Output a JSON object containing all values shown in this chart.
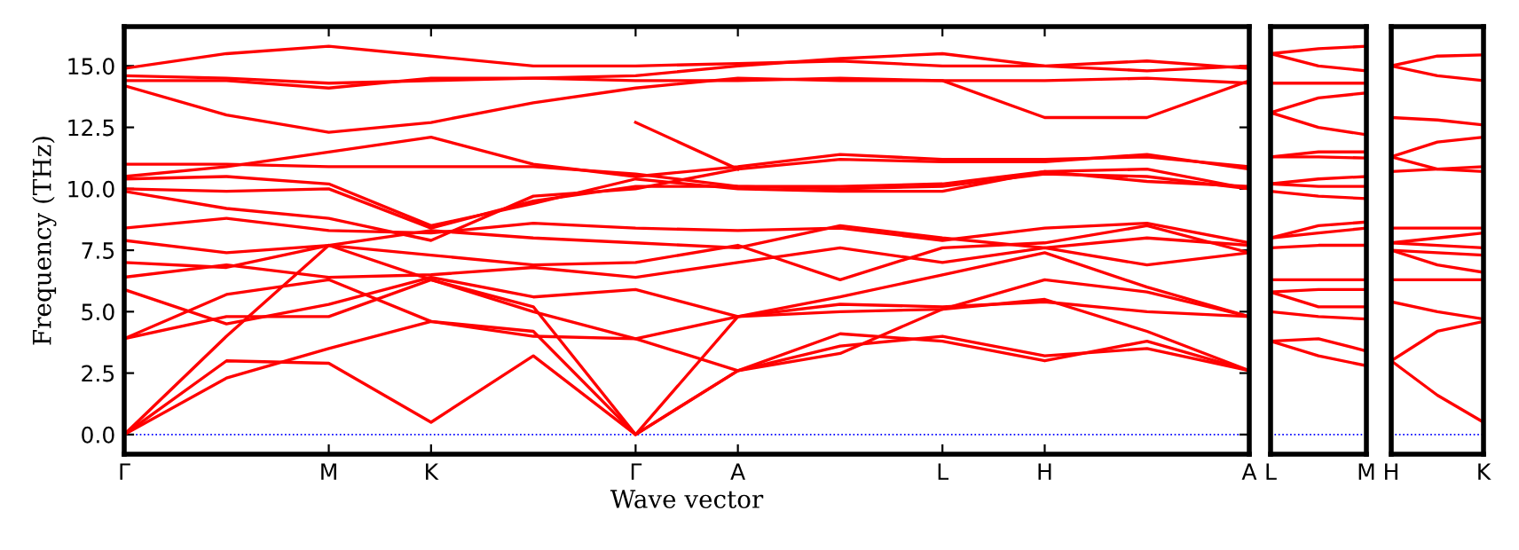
{
  "chart_data": [
    {
      "type": "line",
      "xlabel": "Wave vector",
      "ylabel": "Frequency (THz)",
      "ylim": [
        -0.8,
        16.6
      ],
      "line_style": "solid",
      "marker": "none",
      "categories": [
        "Γ",
        null,
        "M",
        "K",
        null,
        "Γ",
        "A",
        null,
        "L",
        "H",
        null,
        "A"
      ],
      "yticks": [
        {
          "value": 0,
          "label": "0.0"
        },
        {
          "value": 2.5,
          "label": "2.5"
        },
        {
          "value": 5,
          "label": "5.0"
        },
        {
          "value": 7.5,
          "label": "7.5"
        },
        {
          "value": 10,
          "label": "10.0"
        },
        {
          "value": 12.5,
          "label": "12.5"
        },
        {
          "value": 15,
          "label": "15.0"
        }
      ],
      "ref_lines": [
        {
          "axis": "y",
          "value": 0,
          "color": "#0000ff",
          "line_style": "dotted"
        }
      ],
      "series": [
        {
          "color": "#ff0000",
          "values": [
            0,
            3.0,
            2.9,
            0.5,
            3.2,
            0,
            2.6,
            4.1,
            3.8,
            3.0,
            3.8,
            2.6
          ]
        },
        {
          "color": "#ff0000",
          "values": [
            0,
            2.3,
            3.5,
            4.6,
            4.2,
            0,
            4.8,
            5.0,
            5.1,
            6.3,
            5.8,
            4.8
          ]
        },
        {
          "color": "#ff0000",
          "values": [
            0,
            4.0,
            7.7,
            6.3,
            5.2,
            0,
            2.6,
            3.6,
            4.0,
            3.2,
            3.5,
            2.6
          ]
        },
        {
          "color": "#ff0000",
          "values": [
            3.9,
            4.8,
            4.8,
            6.3,
            5.0,
            3.9,
            2.6,
            3.3,
            5.1,
            5.5,
            4.2,
            2.6
          ]
        },
        {
          "color": "#ff0000",
          "values": [
            3.9,
            5.7,
            6.3,
            4.6,
            4.0,
            3.9,
            4.8,
            5.3,
            5.2,
            5.4,
            5.0,
            4.8
          ]
        },
        {
          "color": "#ff0000",
          "values": [
            5.9,
            4.5,
            5.3,
            6.4,
            5.6,
            5.9,
            4.8,
            5.6,
            6.5,
            7.4,
            6.0,
            4.8
          ]
        },
        {
          "color": "#ff0000",
          "values": [
            6.4,
            6.9,
            6.4,
            6.5,
            6.8,
            6.4,
            7.0,
            7.6,
            7.0,
            7.6,
            6.9,
            7.4
          ]
        },
        {
          "color": "#ff0000",
          "values": [
            7.0,
            6.8,
            7.7,
            7.3,
            6.9,
            7.0,
            7.7,
            6.3,
            7.6,
            7.8,
            8.5,
            7.4
          ]
        },
        {
          "color": "#ff0000",
          "values": [
            7.9,
            7.4,
            7.7,
            8.3,
            8.0,
            7.8,
            7.6,
            8.5,
            8.0,
            7.6,
            8.0,
            7.7
          ]
        },
        {
          "color": "#ff0000",
          "values": [
            8.4,
            8.8,
            8.3,
            8.2,
            8.6,
            8.4,
            8.3,
            8.4,
            7.9,
            8.4,
            8.6,
            7.8
          ]
        },
        {
          "color": "#ff0000",
          "values": [
            9.9,
            9.2,
            8.8,
            7.9,
            9.7,
            10.0,
            10.8,
            11.2,
            11.1,
            11.1,
            11.4,
            10.8
          ]
        },
        {
          "color": "#ff0000",
          "values": [
            10.0,
            9.9,
            10.0,
            8.4,
            9.5,
            10.1,
            10.1,
            10.1,
            10.2,
            10.7,
            10.3,
            10.1
          ]
        },
        {
          "color": "#ff0000",
          "values": [
            10.4,
            10.5,
            10.2,
            8.5,
            9.4,
            10.4,
            10.0,
            9.9,
            9.9,
            10.7,
            10.8,
            10.0
          ]
        },
        {
          "color": "#ff0000",
          "values": [
            10.5,
            10.9,
            11.5,
            12.1,
            11.0,
            10.5,
            10.9,
            11.4,
            11.2,
            11.2,
            11.3,
            10.9
          ]
        },
        {
          "color": "#ff0000",
          "values": [
            11.0,
            11.0,
            10.9,
            10.9,
            10.9,
            10.6,
            10.1,
            10.0,
            10.1,
            10.6,
            10.5,
            10.0
          ]
        },
        {
          "color": "#ff0000",
          "values": [
            null,
            null,
            null,
            null,
            null,
            12.7,
            10.8,
            null,
            null,
            null,
            null,
            null
          ]
        },
        {
          "color": "#ff0000",
          "values": [
            14.2,
            13.0,
            12.3,
            12.7,
            13.5,
            14.1,
            14.5,
            14.4,
            14.4,
            12.9,
            12.9,
            14.4
          ]
        },
        {
          "color": "#ff0000",
          "values": [
            14.4,
            14.4,
            14.1,
            14.5,
            14.5,
            14.4,
            14.4,
            14.5,
            14.4,
            14.4,
            14.5,
            14.3
          ]
        },
        {
          "color": "#ff0000",
          "values": [
            14.6,
            14.5,
            14.3,
            14.4,
            14.5,
            14.6,
            15.0,
            15.3,
            15.5,
            15.0,
            14.8,
            15.0
          ]
        },
        {
          "color": "#ff0000",
          "values": [
            14.9,
            15.5,
            15.8,
            15.4,
            15.0,
            15.0,
            15.1,
            15.2,
            15.0,
            15.0,
            15.2,
            14.9
          ]
        }
      ]
    },
    {
      "type": "line",
      "ylim": [
        -0.8,
        16.6
      ],
      "tick_labels": "x",
      "line_style": "solid",
      "marker": "none",
      "categories": [
        "L",
        null,
        "M"
      ],
      "ref_lines": [
        {
          "axis": "y",
          "value": 0,
          "color": "#0000ff",
          "line_style": "dotted"
        }
      ],
      "series": [
        {
          "color": "#ff0000",
          "values": [
            15.5,
            15.7,
            15.8
          ]
        },
        {
          "color": "#ff0000",
          "values": [
            15.5,
            15.0,
            14.8
          ]
        },
        {
          "color": "#ff0000",
          "values": [
            14.3,
            14.3,
            14.3
          ]
        },
        {
          "color": "#ff0000",
          "values": [
            13.1,
            13.7,
            13.9
          ]
        },
        {
          "color": "#ff0000",
          "values": [
            13.1,
            12.5,
            12.2
          ]
        },
        {
          "color": "#ff0000",
          "values": [
            11.3,
            11.5,
            11.5
          ]
        },
        {
          "color": "#ff0000",
          "values": [
            11.3,
            11.3,
            11.25
          ]
        },
        {
          "color": "#ff0000",
          "values": [
            10.2,
            10.4,
            10.5
          ]
        },
        {
          "color": "#ff0000",
          "values": [
            10.2,
            10.1,
            10.1
          ]
        },
        {
          "color": "#ff0000",
          "values": [
            9.9,
            9.7,
            9.6
          ]
        },
        {
          "color": "#ff0000",
          "values": [
            8.0,
            8.5,
            8.65
          ]
        },
        {
          "color": "#ff0000",
          "values": [
            8.0,
            8.2,
            8.4
          ]
        },
        {
          "color": "#ff0000",
          "values": [
            7.6,
            7.7,
            7.7
          ]
        },
        {
          "color": "#ff0000",
          "values": [
            6.3,
            6.3,
            6.3
          ]
        },
        {
          "color": "#ff0000",
          "values": [
            5.8,
            5.9,
            5.9
          ]
        },
        {
          "color": "#ff0000",
          "values": [
            5.8,
            5.2,
            5.2
          ]
        },
        {
          "color": "#ff0000",
          "values": [
            5.0,
            4.8,
            4.7
          ]
        },
        {
          "color": "#ff0000",
          "values": [
            3.8,
            3.9,
            3.4
          ]
        },
        {
          "color": "#ff0000",
          "values": [
            3.8,
            3.2,
            2.8
          ]
        }
      ]
    },
    {
      "type": "line",
      "ylim": [
        -0.8,
        16.6
      ],
      "tick_labels": "x",
      "line_style": "solid",
      "marker": "none",
      "categories": [
        "H",
        null,
        "K"
      ],
      "ref_lines": [
        {
          "axis": "y",
          "value": 0,
          "color": "#0000ff",
          "line_style": "dotted"
        }
      ],
      "series": [
        {
          "color": "#ff0000",
          "values": [
            15.0,
            15.4,
            15.45
          ]
        },
        {
          "color": "#ff0000",
          "values": [
            15.0,
            14.6,
            14.4
          ]
        },
        {
          "color": "#ff0000",
          "values": [
            12.9,
            12.8,
            12.6
          ]
        },
        {
          "color": "#ff0000",
          "values": [
            11.3,
            11.9,
            12.1
          ]
        },
        {
          "color": "#ff0000",
          "values": [
            11.3,
            10.8,
            10.7
          ]
        },
        {
          "color": "#ff0000",
          "values": [
            10.7,
            10.8,
            10.9
          ]
        },
        {
          "color": "#ff0000",
          "values": [
            8.4,
            8.4,
            8.4
          ]
        },
        {
          "color": "#ff0000",
          "values": [
            7.8,
            8.0,
            8.2
          ]
        },
        {
          "color": "#ff0000",
          "values": [
            7.8,
            7.7,
            7.6
          ]
        },
        {
          "color": "#ff0000",
          "values": [
            7.5,
            7.4,
            7.3
          ]
        },
        {
          "color": "#ff0000",
          "values": [
            7.5,
            6.9,
            6.6
          ]
        },
        {
          "color": "#ff0000",
          "values": [
            6.3,
            6.3,
            6.3
          ]
        },
        {
          "color": "#ff0000",
          "values": [
            5.4,
            5.0,
            4.7
          ]
        },
        {
          "color": "#ff0000",
          "values": [
            3.0,
            4.2,
            4.6
          ]
        },
        {
          "color": "#ff0000",
          "values": [
            3.0,
            1.6,
            0.5
          ]
        }
      ]
    }
  ]
}
